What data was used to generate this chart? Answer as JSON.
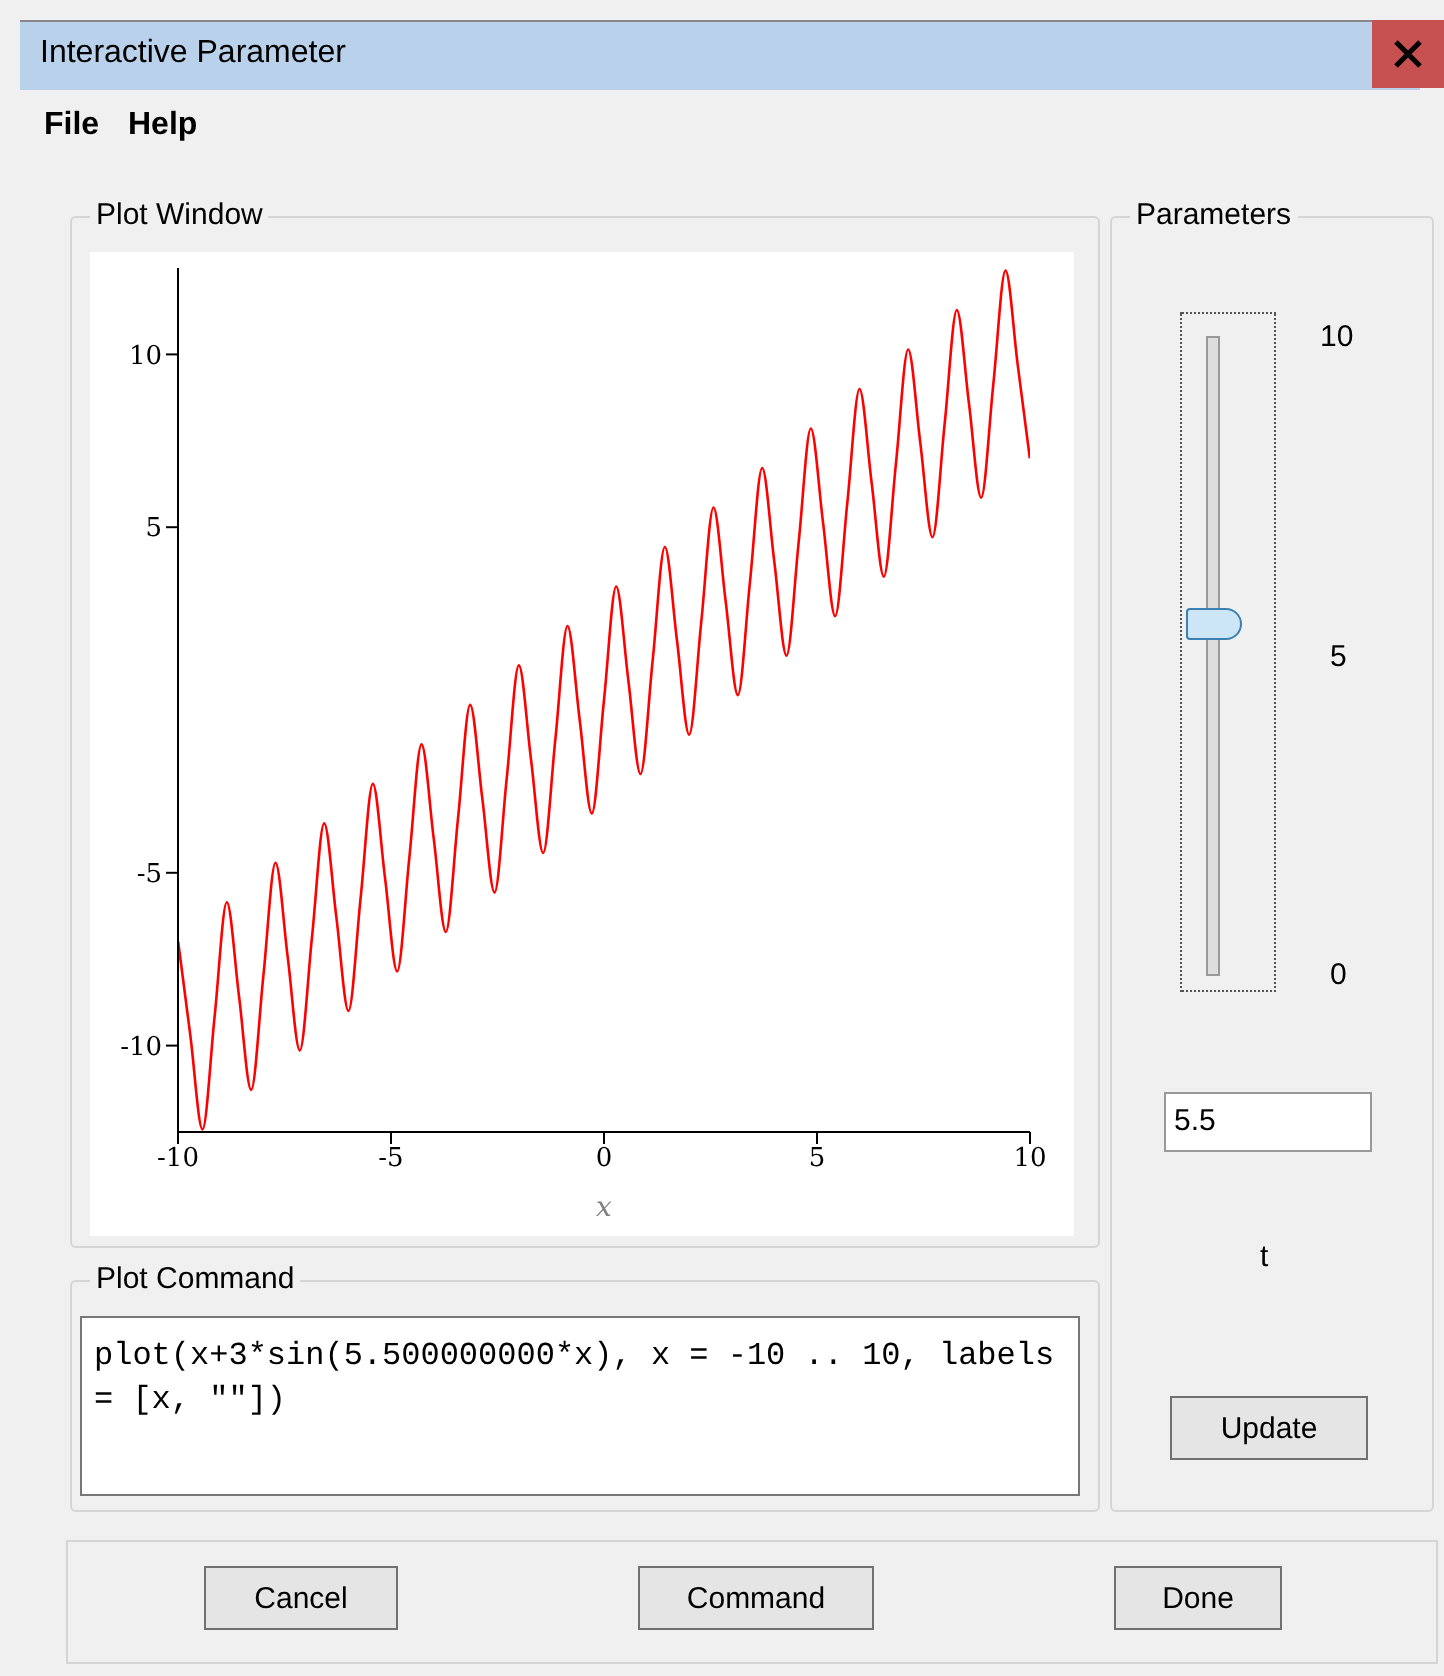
{
  "chart_data": {
    "type": "line",
    "title": "Interactive Parameter",
    "xlabel": "x",
    "x": [
      -9.996,
      -9.71,
      -9.425,
      -9.139,
      -8.854,
      -8.568,
      -8.282,
      -7.997,
      -7.711,
      -7.426,
      -7.14,
      -6.854,
      -6.569,
      -6.283,
      -5.998,
      -5.712,
      -5.426,
      -5.141,
      -4.855,
      -4.57,
      -4.284,
      -3.998,
      -3.713,
      -3.427,
      -3.142,
      -2.856,
      -2.57,
      -2.285,
      -1.999,
      -1.714,
      -1.428,
      -1.142,
      -0.857,
      -0.571,
      -0.286,
      0,
      0.286,
      0.571,
      0.857,
      1.142,
      1.428,
      1.714,
      1.999,
      2.285,
      2.57,
      2.856,
      3.142,
      3.427,
      3.713,
      3.998,
      4.284,
      4.57,
      4.855,
      5.141,
      5.426,
      5.712,
      5.998,
      6.283,
      6.569,
      6.854,
      7.14,
      7.426,
      7.711,
      7.997,
      8.282,
      8.568,
      8.854,
      9.139,
      9.425,
      9.71,
      9.996
    ],
    "series": [
      {
        "color": "#ff0000",
        "values": [
          -6.996,
          -9.71,
          -12.425,
          -9.139,
          -5.854,
          -8.568,
          -11.282,
          -7.997,
          -4.711,
          -7.426,
          -10.14,
          -6.854,
          -3.569,
          -6.283,
          -8.998,
          -5.712,
          -2.426,
          -5.141,
          -7.855,
          -4.57,
          -1.284,
          -3.998,
          -6.713,
          -3.427,
          -0.142,
          -2.856,
          -5.57,
          -2.285,
          1.001,
          -1.714,
          -4.428,
          -1.142,
          2.143,
          -0.571,
          -3.286,
          0,
          3.286,
          0.571,
          -2.143,
          1.142,
          4.428,
          1.714,
          -1.001,
          2.285,
          5.57,
          2.856,
          0.142,
          3.427,
          6.713,
          3.998,
          1.284,
          4.57,
          7.855,
          5.141,
          2.426,
          5.712,
          8.998,
          6.283,
          3.569,
          6.854,
          10.14,
          7.426,
          4.711,
          7.997,
          11.282,
          8.568,
          5.854,
          9.139,
          12.425,
          9.71,
          6.996
        ]
      }
    ],
    "xlim": [
      -10,
      10
    ],
    "xticks": [
      -10,
      -5,
      0,
      5,
      10
    ],
    "ylim": [
      -12.5,
      12.5
    ],
    "yticks": [
      -10,
      -5,
      5,
      10
    ],
    "grid": false,
    "legend": false,
    "marker": "none",
    "line_style": "solid",
    "annotations": [
      "File",
      "Help",
      "Plot Window",
      "Parameters",
      "10",
      "5",
      "0",
      "5.5",
      "t",
      "Plot Command",
      "plot(x+3*sin(5.500000000*x), x = -10 .. 10, labels = [x, \"\"])",
      "Update",
      "Cancel",
      "Command",
      "Done"
    ]
  }
}
